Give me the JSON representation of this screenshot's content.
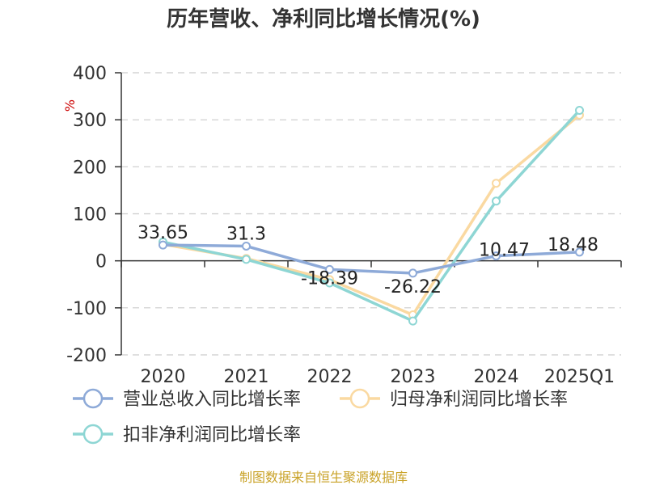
{
  "chart_data": {
    "type": "line",
    "title": "历年营收、净利同比增长情况(%)",
    "ylabel": "%",
    "xlabel": "",
    "categories": [
      "2020",
      "2021",
      "2022",
      "2023",
      "2024",
      "2025Q1"
    ],
    "ylim": [
      -200,
      400
    ],
    "yticks": [
      400,
      300,
      200,
      100,
      0,
      -100,
      -200
    ],
    "grid": true,
    "legend_position": "bottom",
    "series": [
      {
        "name": "营业总收入同比增长率",
        "color": "#8eaad8",
        "values": [
          33.65,
          31.3,
          -18.39,
          -26.22,
          10.47,
          18.48
        ],
        "labels": [
          "33.65",
          "31.3",
          "-18.39",
          "-26.22",
          "10.47",
          "18.48"
        ]
      },
      {
        "name": "归母净利润同比增长率",
        "color": "#fad9a1",
        "values": [
          35,
          5,
          -40,
          -115,
          165,
          310
        ]
      },
      {
        "name": "扣非净利润同比增长率",
        "color": "#8ed6d4",
        "values": [
          40,
          3,
          -47,
          -128,
          127,
          320
        ]
      }
    ]
  },
  "source": "制图数据来自恒生聚源数据库"
}
